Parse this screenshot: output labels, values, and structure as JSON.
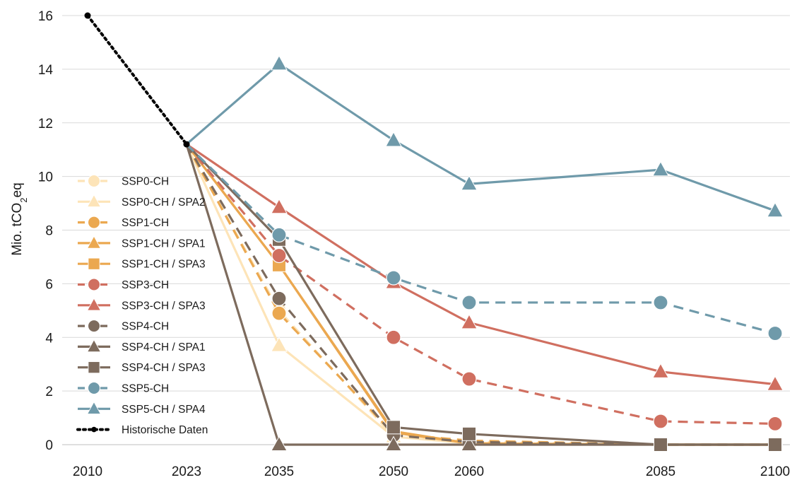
{
  "chart_data": {
    "type": "line",
    "ylabel": "Mio. tCO",
    "ylabel_sub": "2",
    "ylabel_suffix": "eq",
    "ylim": [
      0,
      16
    ],
    "yticks": [
      0,
      2,
      4,
      6,
      8,
      10,
      12,
      14,
      16
    ],
    "xticks": [
      2010,
      2023,
      2035,
      2050,
      2060,
      2085,
      2100
    ],
    "grid": "horizontal",
    "legend_position": "left",
    "series": [
      {
        "name": "SSP0-CH",
        "color": "#fde4b8",
        "dash": true,
        "marker": "circle",
        "x": [
          2023,
          2035,
          2050,
          2060,
          2085,
          2100
        ],
        "y": [
          11.2,
          5.0,
          0.3,
          0.1,
          0.0,
          0.0
        ]
      },
      {
        "name": "SSP0-CH / SPA2",
        "color": "#fde4b8",
        "dash": false,
        "marker": "triangle",
        "x": [
          2023,
          2035,
          2050,
          2060,
          2085,
          2100
        ],
        "y": [
          11.2,
          3.7,
          0.3,
          0.05,
          0.0,
          0.0
        ]
      },
      {
        "name": "SSP1-CH",
        "color": "#eba850",
        "dash": true,
        "marker": "circle",
        "x": [
          2023,
          2035,
          2050,
          2060,
          2085,
          2100
        ],
        "y": [
          11.2,
          4.9,
          0.4,
          0.15,
          0.0,
          0.0
        ]
      },
      {
        "name": "SSP1-CH / SPA1",
        "color": "#eba850",
        "dash": false,
        "marker": "triangle",
        "x": [
          2023,
          2035,
          2050,
          2060,
          2085,
          2100
        ],
        "y": [
          11.2,
          6.7,
          0.5,
          0.05,
          0.0,
          0.0
        ]
      },
      {
        "name": "SSP1-CH / SPA3",
        "color": "#eba850",
        "dash": false,
        "marker": "square",
        "x": [
          2023,
          2035,
          2050,
          2060,
          2085,
          2100
        ],
        "y": [
          11.2,
          6.7,
          0.45,
          0.05,
          0.0,
          0.0
        ]
      },
      {
        "name": "SSP3-CH",
        "color": "#d06f60",
        "dash": true,
        "marker": "circle",
        "x": [
          2023,
          2035,
          2050,
          2060,
          2085,
          2100
        ],
        "y": [
          11.2,
          7.05,
          4.0,
          2.45,
          0.87,
          0.78
        ]
      },
      {
        "name": "SSP3-CH / SPA3",
        "color": "#d06f60",
        "dash": false,
        "marker": "triangle",
        "x": [
          2023,
          2035,
          2050,
          2060,
          2085,
          2100
        ],
        "y": [
          11.2,
          8.85,
          6.05,
          4.55,
          2.72,
          2.25
        ]
      },
      {
        "name": "SSP4-CH",
        "color": "#7d6b5d",
        "dash": true,
        "marker": "circle",
        "x": [
          2023,
          2035,
          2050,
          2060,
          2085,
          2100
        ],
        "y": [
          11.2,
          5.45,
          0.35,
          0.1,
          0.0,
          0.0
        ]
      },
      {
        "name": "SSP4-CH / SPA1",
        "color": "#7d6b5d",
        "dash": false,
        "marker": "triangle",
        "x": [
          2023,
          2035,
          2050,
          2060,
          2085,
          2100
        ],
        "y": [
          11.2,
          0.0,
          0.0,
          0.0,
          0.0,
          0.0
        ]
      },
      {
        "name": "SSP4-CH / SPA3",
        "color": "#7d6b5d",
        "dash": false,
        "marker": "square",
        "x": [
          2023,
          2035,
          2050,
          2060,
          2085,
          2100
        ],
        "y": [
          11.2,
          7.65,
          0.65,
          0.4,
          0.0,
          0.0
        ]
      },
      {
        "name": "SSP5-CH",
        "color": "#6f9aaa",
        "dash": true,
        "marker": "circle",
        "x": [
          2023,
          2035,
          2050,
          2060,
          2085,
          2100
        ],
        "y": [
          11.2,
          7.82,
          6.22,
          5.3,
          5.3,
          4.15
        ]
      },
      {
        "name": "SSP5-CH / SPA4",
        "color": "#6f9aaa",
        "dash": false,
        "marker": "triangle",
        "x": [
          2023,
          2035,
          2050,
          2060,
          2085,
          2100
        ],
        "y": [
          11.2,
          14.2,
          11.35,
          9.72,
          10.25,
          8.72
        ]
      },
      {
        "name": "Historische Daten",
        "color": "#000000",
        "dash": "dotted",
        "marker": "dot",
        "x": [
          2010,
          2023
        ],
        "y": [
          16.0,
          11.2
        ]
      }
    ]
  }
}
